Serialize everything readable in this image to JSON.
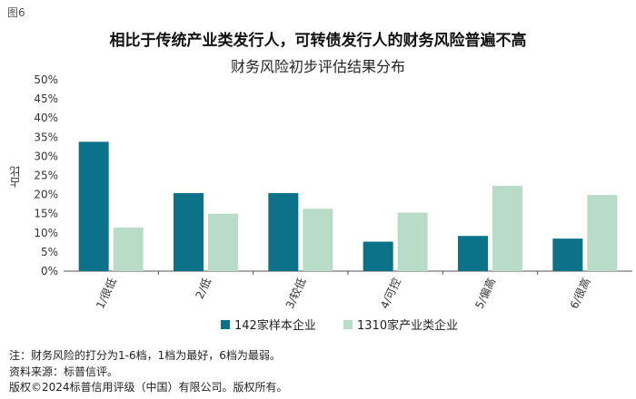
{
  "figure_label": "图6",
  "legend_texts": [
    "142家样本企业",
    "1310家产业类企业"
  ],
  "notes": [
    "注：财务风险的打分为1-6档，1档为最好，6档为最弱。",
    "资料来源：标普信评。",
    "版权©2024标普信用评级（中国）有限公司。版权所有。"
  ],
  "chart_data": {
    "type": "bar",
    "title": "相比于传统产业类发行人，可转债发行人的财务风险普遍不高",
    "subtitle": "财务风险初步评估结果分布",
    "xlabel": "",
    "ylabel": "占比",
    "categories": [
      "1/很低",
      "2/低",
      "3/较低",
      "4/可控",
      "5/偏高",
      "6/很高"
    ],
    "series": [
      {
        "name": "142家样本企业",
        "color": "#0b7289",
        "values": [
          33.8,
          20.4,
          20.4,
          7.7,
          9.2,
          8.5
        ]
      },
      {
        "name": "1310家产业类企业",
        "color": "#b9dcc8",
        "values": [
          11.4,
          15.0,
          16.3,
          15.3,
          22.3,
          19.9
        ]
      }
    ],
    "ylim": [
      0,
      50
    ],
    "yticks": [
      "0%",
      "5%",
      "10%",
      "15%",
      "20%",
      "25%",
      "30%",
      "35%",
      "40%",
      "45%",
      "50%"
    ],
    "grid": false,
    "legend_position": "bottom"
  }
}
